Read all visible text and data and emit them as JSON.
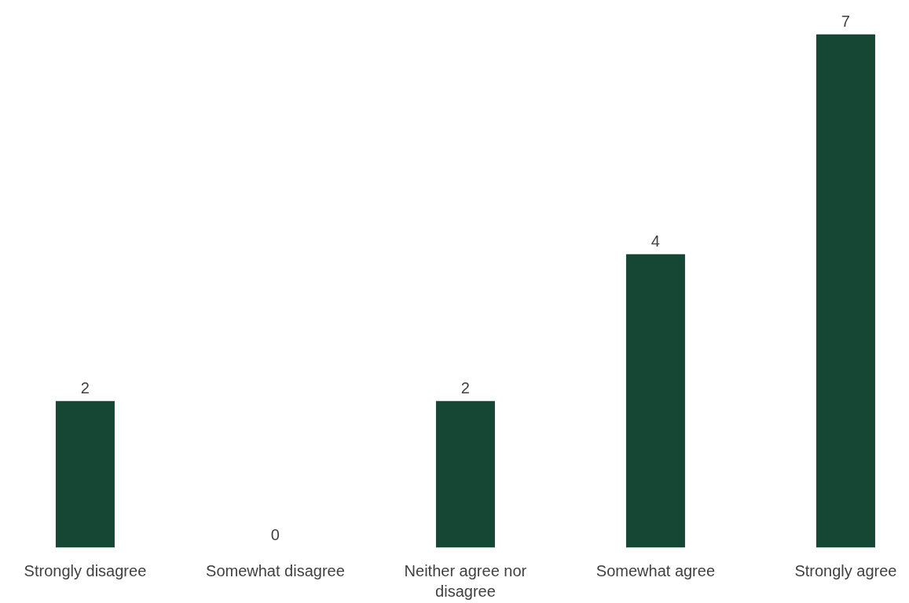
{
  "chart_data": {
    "type": "bar",
    "categories": [
      "Strongly disagree",
      "Somewhat disagree",
      "Neither agree nor disagree",
      "Somewhat agree",
      "Strongly agree"
    ],
    "values": [
      2,
      0,
      2,
      4,
      7
    ],
    "color": "#154734",
    "data_labels": true,
    "grid": false
  }
}
